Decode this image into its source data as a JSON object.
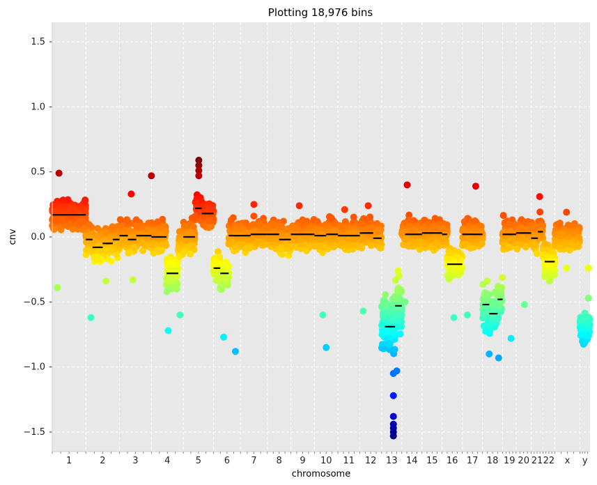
{
  "chart_data": {
    "type": "scatter",
    "title": "Plotting 18,976 bins",
    "xlabel": "chromosome",
    "ylabel": "cnv",
    "ylim": [
      -1.65,
      1.65
    ],
    "yticks": [
      1.5,
      1.0,
      0.5,
      0.0,
      -0.5,
      -1.0,
      -1.5
    ],
    "ytick_labels": [
      "1.5",
      "1.0",
      "0.5",
      "0.0",
      "−0.5",
      "−1.0",
      "−1.5"
    ],
    "grid": true,
    "background": "#e8e8e8",
    "colormap": "jet",
    "color_range": [
      -1.55,
      0.6
    ],
    "chromosomes": [
      {
        "label": "1",
        "start": 0,
        "end": 1000,
        "base": 0.17,
        "spread": 0.1,
        "segments": [
          [
            0,
            1000,
            0.17
          ]
        ],
        "outliers": [
          [
            200,
            0.49
          ],
          [
            150,
            -0.39
          ]
        ]
      },
      {
        "label": "2",
        "start": 1000,
        "end": 2000,
        "base": -0.03,
        "spread": 0.11,
        "segments": [
          [
            1000,
            1200,
            -0.02
          ],
          [
            1200,
            1500,
            -0.08
          ],
          [
            1500,
            1800,
            -0.05
          ],
          [
            1800,
            2000,
            -0.02
          ]
        ],
        "outliers": [
          [
            1150,
            -0.62
          ],
          [
            1600,
            -0.34
          ]
        ]
      },
      {
        "label": "3",
        "start": 2000,
        "end": 2950,
        "base": 0.01,
        "spread": 0.1,
        "segments": [
          [
            2000,
            2250,
            0.01
          ],
          [
            2250,
            2500,
            -0.02
          ],
          [
            2500,
            2950,
            0.01
          ]
        ],
        "outliers": [
          [
            2350,
            0.33
          ],
          [
            2950,
            0.47
          ],
          [
            2400,
            -0.33
          ]
        ]
      },
      {
        "label": "4",
        "start": 2950,
        "end": 3900,
        "base": -0.05,
        "spread": 0.12,
        "segments": [
          [
            2950,
            3400,
            0.0
          ],
          [
            3400,
            3750,
            -0.28
          ]
        ],
        "outliers": [
          [
            3450,
            -0.72
          ],
          [
            3800,
            -0.6
          ]
        ]
      },
      {
        "label": "5",
        "start": 3900,
        "end": 4800,
        "base": 0.2,
        "spread": 0.1,
        "segments": [
          [
            3900,
            4250,
            0.0
          ],
          [
            4250,
            4450,
            0.22
          ],
          [
            4450,
            4800,
            0.18
          ]
        ],
        "outliers": [
          [
            4360,
            0.59
          ],
          [
            4360,
            0.55
          ],
          [
            4360,
            0.51
          ],
          [
            4360,
            0.47
          ]
        ]
      },
      {
        "label": "6",
        "start": 4800,
        "end": 5600,
        "base": 0.0,
        "spread": 0.1,
        "segments": [
          [
            4800,
            5000,
            -0.24
          ],
          [
            5000,
            5250,
            -0.28
          ],
          [
            5250,
            5600,
            0.01
          ]
        ],
        "outliers": [
          [
            5100,
            -0.77
          ],
          [
            5450,
            -0.88
          ]
        ]
      },
      {
        "label": "7",
        "start": 5600,
        "end": 6400,
        "base": 0.0,
        "spread": 0.1,
        "segments": [
          [
            5600,
            5900,
            0.01
          ],
          [
            5900,
            6400,
            0.02
          ]
        ],
        "outliers": [
          [
            6000,
            0.25
          ]
        ]
      },
      {
        "label": "8",
        "start": 6400,
        "end": 7100,
        "base": 0.0,
        "spread": 0.1,
        "segments": [
          [
            6400,
            6750,
            0.02
          ],
          [
            6750,
            7100,
            -0.02
          ]
        ],
        "outliers": []
      },
      {
        "label": "9",
        "start": 7100,
        "end": 7800,
        "base": 0.0,
        "spread": 0.1,
        "segments": [
          [
            7100,
            7800,
            0.02
          ]
        ],
        "outliers": [
          [
            7350,
            0.24
          ]
        ]
      },
      {
        "label": "10",
        "start": 7800,
        "end": 8500,
        "base": 0.0,
        "spread": 0.1,
        "segments": [
          [
            7800,
            8150,
            0.01
          ],
          [
            8150,
            8500,
            0.02
          ]
        ],
        "outliers": [
          [
            8150,
            -0.85
          ],
          [
            8050,
            -0.6
          ]
        ]
      },
      {
        "label": "11",
        "start": 8500,
        "end": 9150,
        "base": 0.0,
        "spread": 0.1,
        "segments": [
          [
            8500,
            9150,
            0.01
          ]
        ],
        "outliers": [
          [
            8700,
            0.21
          ]
        ]
      },
      {
        "label": "12",
        "start": 9150,
        "end": 9800,
        "base": 0.0,
        "spread": 0.1,
        "segments": [
          [
            9150,
            9550,
            0.03
          ],
          [
            9550,
            9800,
            -0.01
          ]
        ],
        "outliers": [
          [
            9400,
            0.24
          ],
          [
            9250,
            -0.57
          ]
        ]
      },
      {
        "label": "13",
        "start": 9800,
        "end": 10400,
        "base": -0.65,
        "spread": 0.2,
        "segments": [
          [
            9900,
            10200,
            -0.69
          ],
          [
            10200,
            10400,
            -0.53
          ]
        ],
        "outliers": [
          [
            10150,
            -1.22
          ],
          [
            10150,
            -1.38
          ],
          [
            10150,
            -1.44
          ],
          [
            10150,
            -1.47
          ],
          [
            10150,
            -1.5
          ],
          [
            10150,
            -1.53
          ],
          [
            10150,
            -1.05
          ],
          [
            10250,
            -1.03
          ]
        ]
      },
      {
        "label": "14",
        "start": 10400,
        "end": 11000,
        "base": 0.03,
        "spread": 0.1,
        "segments": [
          [
            10500,
            11000,
            0.02
          ]
        ],
        "outliers": [
          [
            10560,
            0.4
          ],
          [
            10500,
            -0.5
          ]
        ]
      },
      {
        "label": "15",
        "start": 11000,
        "end": 11600,
        "base": 0.03,
        "spread": 0.1,
        "segments": [
          [
            11000,
            11600,
            0.03
          ]
        ],
        "outliers": []
      },
      {
        "label": "16",
        "start": 11600,
        "end": 12200,
        "base": 0.0,
        "spread": 0.1,
        "segments": [
          [
            11600,
            11750,
            0.02
          ],
          [
            11750,
            12200,
            -0.21
          ]
        ],
        "outliers": [
          [
            11950,
            -0.62
          ]
        ]
      },
      {
        "label": "17",
        "start": 12200,
        "end": 12800,
        "base": 0.02,
        "spread": 0.1,
        "segments": [
          [
            12200,
            12800,
            0.02
          ]
        ],
        "outliers": [
          [
            12600,
            0.39
          ],
          [
            12350,
            -0.6
          ]
        ]
      },
      {
        "label": "18",
        "start": 12800,
        "end": 13400,
        "base": -0.5,
        "spread": 0.15,
        "segments": [
          [
            12800,
            13000,
            -0.52
          ],
          [
            13000,
            13250,
            -0.59
          ],
          [
            13250,
            13400,
            -0.48
          ]
        ],
        "outliers": [
          [
            13000,
            -0.9
          ],
          [
            13280,
            -0.93
          ]
        ]
      },
      {
        "label": "19",
        "start": 13400,
        "end": 13800,
        "base": 0.02,
        "spread": 0.1,
        "segments": [
          [
            13400,
            13800,
            0.02
          ]
        ],
        "outliers": [
          [
            13650,
            -0.78
          ]
        ]
      },
      {
        "label": "20",
        "start": 13800,
        "end": 14250,
        "base": 0.02,
        "spread": 0.1,
        "segments": [
          [
            13800,
            14250,
            0.03
          ]
        ],
        "outliers": [
          [
            14050,
            -0.52
          ]
        ]
      },
      {
        "label": "21",
        "start": 14250,
        "end": 14600,
        "base": 0.0,
        "spread": 0.1,
        "segments": [
          [
            14250,
            14450,
            -0.01
          ],
          [
            14450,
            14600,
            0.04
          ]
        ],
        "outliers": [
          [
            14500,
            0.31
          ]
        ]
      },
      {
        "label": "22",
        "start": 14600,
        "end": 14950,
        "base": -0.15,
        "spread": 0.12,
        "segments": [
          [
            14650,
            14950,
            -0.19
          ]
        ],
        "outliers": []
      },
      {
        "label": "x",
        "start": 14950,
        "end": 15700,
        "base": 0.0,
        "spread": 0.1,
        "segments": [],
        "outliers": [
          [
            15300,
            0.19
          ],
          [
            15300,
            -0.24
          ]
        ]
      },
      {
        "label": "y",
        "start": 15700,
        "end": 16000,
        "base": -0.7,
        "spread": 0.1,
        "segments": [],
        "outliers": [
          [
            15950,
            -0.24
          ],
          [
            15950,
            -0.47
          ],
          [
            15950,
            -0.66
          ],
          [
            15950,
            -0.76
          ]
        ]
      }
    ]
  }
}
